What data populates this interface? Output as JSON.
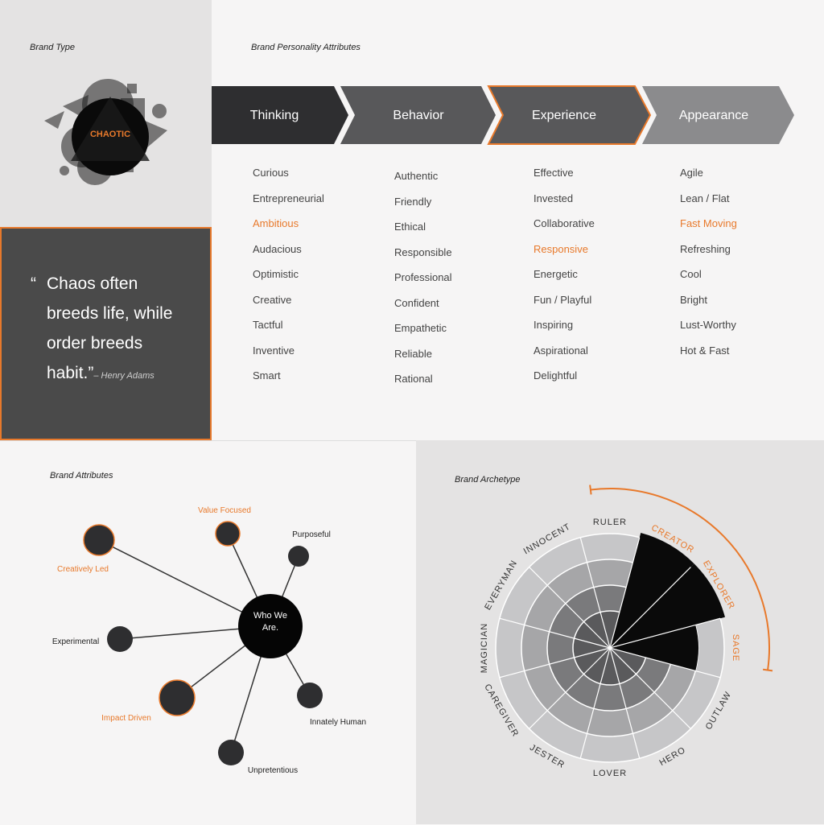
{
  "brand_type": {
    "title": "Brand Type",
    "label": "CHAOTIC"
  },
  "quote": {
    "open_mark": "“",
    "line1": "Chaos often",
    "line2": "breeds life, while",
    "line3": "order breeds",
    "line4": "habit.”",
    "author": "– Henry Adams"
  },
  "personality": {
    "title": "Brand Personality Attributes",
    "columns": [
      {
        "header": "Thinking",
        "items": [
          "Curious",
          "Entrepreneurial",
          "Ambitious",
          "Audacious",
          "Optimistic",
          "Creative",
          "Tactful",
          "Inventive",
          "Smart"
        ],
        "highlight": [
          2
        ]
      },
      {
        "header": "Behavior",
        "items": [
          "Authentic",
          "Friendly",
          "Ethical",
          "Responsible",
          "Professional",
          "Confident",
          "Empathetic",
          "Reliable",
          "Rational"
        ],
        "highlight": []
      },
      {
        "header": "Experience",
        "items": [
          "Effective",
          "Invested",
          "Collaborative",
          "Responsive",
          "Energetic",
          "Fun / Playful",
          "Inspiring",
          "Aspirational",
          "Delightful"
        ],
        "highlight": [
          3
        ]
      },
      {
        "header": "Appearance",
        "items": [
          "Agile",
          "Lean / Flat",
          "Fast Moving",
          "Refreshing",
          "Cool",
          "Bright",
          "Lust-Worthy",
          "Hot & Fast"
        ],
        "highlight": [
          2
        ]
      }
    ]
  },
  "attributes": {
    "title": "Brand Attributes",
    "center": {
      "line1": "Who We",
      "line2": "Are."
    },
    "nodes": [
      {
        "label": "Creatively Led",
        "highlight": true
      },
      {
        "label": "Value Focused",
        "highlight": true
      },
      {
        "label": "Purposeful",
        "highlight": false
      },
      {
        "label": "Experimental",
        "highlight": false
      },
      {
        "label": "Impact Driven",
        "highlight": true
      },
      {
        "label": "Innately Human",
        "highlight": false
      },
      {
        "label": "Unpretentious",
        "highlight": false
      }
    ]
  },
  "archetype": {
    "title": "Brand Archetype",
    "labels": [
      "RULER",
      "CREATOR",
      "EXPLORER",
      "SAGE",
      "OUTLAW",
      "HERO",
      "LOVER",
      "JESTER",
      "CAREGIVER",
      "MAGICIAN",
      "EVERYMAN",
      "INNOCENT"
    ],
    "highlight": [
      "CREATOR",
      "EXPLORER",
      "SAGE"
    ],
    "levels": [
      1,
      4,
      4,
      3,
      1,
      1,
      1,
      1,
      1,
      1,
      1,
      1
    ]
  },
  "colors": {
    "accent": "#e8792b",
    "dark": "#2e2e30",
    "mid": "#58585a",
    "light": "#8b8b8d"
  }
}
